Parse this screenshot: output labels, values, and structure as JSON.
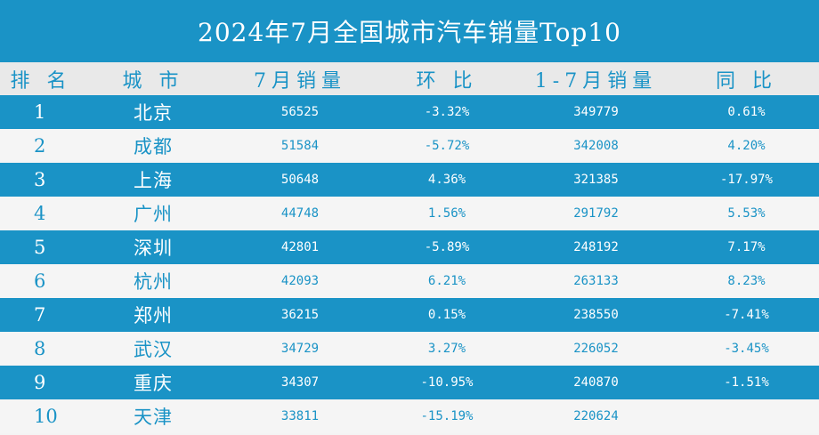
{
  "title": "2024年7月全国城市汽车销量Top10",
  "headers": {
    "rank": "排 名",
    "city": "城 市",
    "july_sales": "7月销量",
    "mom": "环 比",
    "ytd_sales": "1-7月销量",
    "yoy": "同 比"
  },
  "rows": [
    {
      "rank": "1",
      "city": "北京",
      "july_sales": "56525",
      "mom": "-3.32%",
      "ytd_sales": "349779",
      "yoy": "0.61%"
    },
    {
      "rank": "2",
      "city": "成都",
      "july_sales": "51584",
      "mom": "-5.72%",
      "ytd_sales": "342008",
      "yoy": "4.20%"
    },
    {
      "rank": "3",
      "city": "上海",
      "july_sales": "50648",
      "mom": "4.36%",
      "ytd_sales": "321385",
      "yoy": "-17.97%"
    },
    {
      "rank": "4",
      "city": "广州",
      "july_sales": "44748",
      "mom": "1.56%",
      "ytd_sales": "291792",
      "yoy": "5.53%"
    },
    {
      "rank": "5",
      "city": "深圳",
      "july_sales": "42801",
      "mom": "-5.89%",
      "ytd_sales": "248192",
      "yoy": "7.17%"
    },
    {
      "rank": "6",
      "city": "杭州",
      "july_sales": "42093",
      "mom": "6.21%",
      "ytd_sales": "263133",
      "yoy": "8.23%"
    },
    {
      "rank": "7",
      "city": "郑州",
      "july_sales": "36215",
      "mom": "0.15%",
      "ytd_sales": "238550",
      "yoy": "-7.41%"
    },
    {
      "rank": "8",
      "city": "武汉",
      "july_sales": "34729",
      "mom": "3.27%",
      "ytd_sales": "226052",
      "yoy": "-3.45%"
    },
    {
      "rank": "9",
      "city": "重庆",
      "july_sales": "34307",
      "mom": "-10.95%",
      "ytd_sales": "240870",
      "yoy": "-1.51%"
    },
    {
      "rank": "10",
      "city": "天津",
      "july_sales": "33811",
      "mom": "-15.19%",
      "ytd_sales": "220624",
      "yoy": ""
    }
  ],
  "colors": {
    "accent": "#1a93c6",
    "header_bg": "#e9e9e9",
    "row_light": "#f5f5f5"
  }
}
